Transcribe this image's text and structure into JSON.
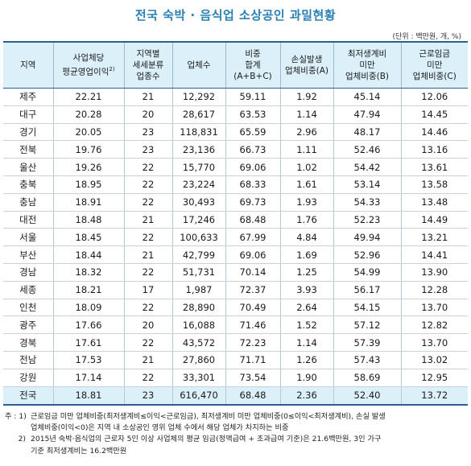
{
  "title": "전국 숙박 · 음식업 소상공인 과밀현황",
  "unit": "(단위 : 백만원, 개, %)",
  "headers": [
    [
      "지역"
    ],
    [
      "사업체당",
      "평균영업이익",
      "2)"
    ],
    [
      "지역별",
      "세세분류",
      "업종수"
    ],
    [
      "업체수"
    ],
    [
      "비중",
      "합계",
      "(A+B+C)"
    ],
    [
      "손실발생",
      "업체비중(A)"
    ],
    [
      "최저생계비",
      "미만",
      "업체비중(B)"
    ],
    [
      "근로임금",
      "미만",
      "업체비중(C)"
    ]
  ],
  "rows": [
    [
      "제주",
      "22.21",
      "21",
      "12,292",
      "59.11",
      "1.92",
      "45.14",
      "12.06"
    ],
    [
      "대구",
      "20.28",
      "20",
      "28,617",
      "63.53",
      "1.14",
      "47.94",
      "14.45"
    ],
    [
      "경기",
      "20.05",
      "23",
      "118,831",
      "65.59",
      "2.96",
      "48.17",
      "14.46"
    ],
    [
      "전북",
      "19.76",
      "23",
      "23,136",
      "66.73",
      "1.11",
      "52.46",
      "13.16"
    ],
    [
      "울산",
      "19.26",
      "22",
      "15,770",
      "69.06",
      "1.02",
      "54.42",
      "13.61"
    ],
    [
      "충북",
      "18.95",
      "22",
      "23,224",
      "68.33",
      "1.61",
      "53.14",
      "13.58"
    ],
    [
      "충남",
      "18.91",
      "22",
      "30,493",
      "69.73",
      "1.93",
      "54.33",
      "13.48"
    ],
    [
      "대전",
      "18.48",
      "21",
      "17,246",
      "68.48",
      "1.76",
      "52.23",
      "14.49"
    ],
    [
      "서울",
      "18.45",
      "22",
      "100,633",
      "67.99",
      "4.84",
      "49.94",
      "13.21"
    ],
    [
      "부산",
      "18.44",
      "21",
      "42,799",
      "69.06",
      "1.69",
      "52.96",
      "14.41"
    ],
    [
      "경남",
      "18.32",
      "22",
      "51,731",
      "70.14",
      "1.25",
      "54.99",
      "13.90"
    ],
    [
      "세종",
      "18.21",
      "17",
      "1,987",
      "72.37",
      "3.93",
      "56.17",
      "12.28"
    ],
    [
      "인천",
      "18.09",
      "22",
      "28,890",
      "70.49",
      "2.64",
      "54.15",
      "13.70"
    ],
    [
      "광주",
      "17.66",
      "20",
      "16,088",
      "71.46",
      "1.52",
      "57.12",
      "12.82"
    ],
    [
      "경북",
      "17.61",
      "22",
      "43,572",
      "72.23",
      "1.14",
      "57.39",
      "13.70"
    ],
    [
      "전남",
      "17.53",
      "21",
      "27,860",
      "71.71",
      "1.26",
      "57.43",
      "13.02"
    ],
    [
      "강원",
      "17.14",
      "22",
      "33,301",
      "73.54",
      "1.90",
      "58.69",
      "12.95"
    ]
  ],
  "total_row": [
    "전국",
    "18.81",
    "23",
    "616,470",
    "68.48",
    "2.36",
    "52.40",
    "13.72"
  ],
  "notes": {
    "prefix": "주 :",
    "n1_num": "1)",
    "n1_line1": "근로임금 미만 업체비중(최저생계비≤이익<근로임금), 최저생계비 미만 업체비중(0≤이익<최저생계비), 손실 발생",
    "n1_line2": "업체비중(이익<0)은 지역 내 소상공인 영위 업체 수에서 해당 업체가 차지하는 비중",
    "n2_num": "2)",
    "n2_line1": "2015년 숙박·음식업의 근로자 5인 이상 사업체의 평균 임금(정액급여 + 초과급여 기준)은 21.6백만원, 3인 가구",
    "n2_line2": "기준 최저생계비는 16.2백만원"
  }
}
